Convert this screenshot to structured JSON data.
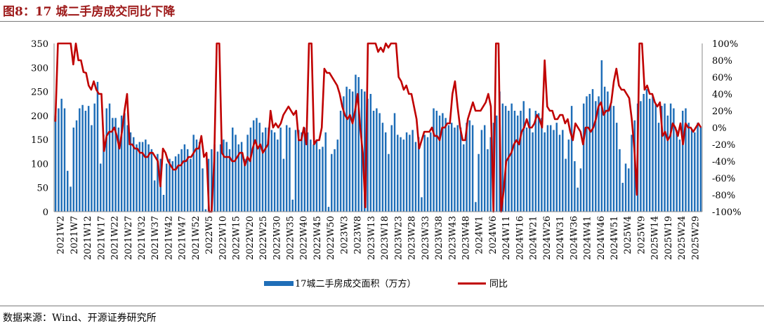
{
  "header": {
    "figure_title": "图8：17 城二手房成交同比下降"
  },
  "footer": {
    "source": "数据来源：Wind、开源证券研究所"
  },
  "chart_data": {
    "type": "bar",
    "title": "",
    "x_tick_labels": [
      "2021W2",
      "2021W7",
      "2021W12",
      "2021W17",
      "2021W22",
      "2021W27",
      "2021W32",
      "2021W37",
      "2021W42",
      "2021W47",
      "2021W52",
      "2022W5",
      "2022W10",
      "2022W15",
      "2022W20",
      "2022W25",
      "2022W30",
      "2022W35",
      "2022W40",
      "2022W45",
      "2022W50",
      "2023W3",
      "2023W8",
      "2023W13",
      "2023W18",
      "2023W23",
      "2023W28",
      "2023W33",
      "2023W38",
      "2023W43",
      "2023W48",
      "2024W1",
      "2024W6",
      "2024W11",
      "2024W16",
      "2024W21",
      "2024W26",
      "2024W31",
      "2024W36",
      "2024W41",
      "2024W46",
      "2024W51",
      "2025W4",
      "2025W9",
      "2025W14",
      "2025W19",
      "2025W24",
      "2025W29"
    ],
    "y_left": {
      "min": 0,
      "max": 350,
      "ticks": [
        0,
        50,
        100,
        150,
        200,
        250,
        300,
        350
      ],
      "tick_labels": [
        "0",
        "50",
        "100",
        "150",
        "200",
        "250",
        "300",
        "350"
      ]
    },
    "y_right": {
      "min": -100,
      "max": 100,
      "ticks": [
        -100,
        -80,
        -60,
        -40,
        -20,
        0,
        20,
        40,
        60,
        80,
        100
      ],
      "tick_labels": [
        "-100%",
        "-80%",
        "-60%",
        "-40%",
        "-20%",
        "0%",
        "20%",
        "40%",
        "60%",
        "80%",
        "100%"
      ]
    },
    "grid": false,
    "legend_position": "bottom",
    "series": [
      {
        "name": "17城二手房成交面积（万方）",
        "type": "bar",
        "axis": "left",
        "color": "#1f6eb8",
        "values": [
          200,
          215,
          235,
          215,
          85,
          52,
          175,
          190,
          215,
          222,
          210,
          220,
          180,
          225,
          270,
          100,
          160,
          215,
          225,
          195,
          195,
          175,
          200,
          205,
          180,
          165,
          155,
          140,
          145,
          145,
          150,
          140,
          130,
          65,
          120,
          110,
          35,
          100,
          110,
          105,
          115,
          120,
          130,
          140,
          130,
          110,
          160,
          150,
          145,
          90,
          5,
          110,
          130,
          140,
          125,
          140,
          150,
          145,
          130,
          175,
          160,
          140,
          145,
          110,
          160,
          175,
          190,
          195,
          185,
          165,
          175,
          175,
          170,
          165,
          150,
          175,
          110,
          180,
          175,
          25,
          170,
          170,
          165,
          175,
          165,
          150,
          140,
          150,
          130,
          135,
          165,
          10,
          120,
          130,
          150,
          210,
          240,
          260,
          255,
          250,
          285,
          280,
          255,
          250,
          235,
          245,
          210,
          215,
          205,
          185,
          165,
          120,
          180,
          205,
          160,
          155,
          150,
          165,
          160,
          170,
          145,
          155,
          30,
          160,
          155,
          165,
          215,
          210,
          200,
          205,
          195,
          180,
          185,
          175,
          180,
          175,
          140,
          185,
          190,
          180,
          20,
          120,
          170,
          180,
          130,
          155,
          185,
          200,
          250,
          225,
          220,
          210,
          225,
          210,
          200,
          210,
          230,
          175,
          215,
          165,
          210,
          205,
          195,
          165,
          180,
          180,
          170,
          185,
          160,
          170,
          110,
          150,
          220,
          105,
          50,
          90,
          225,
          240,
          245,
          255,
          230,
          240,
          315,
          260,
          250,
          225,
          220,
          185,
          130,
          60,
          100,
          90,
          160,
          190,
          225,
          230,
          245,
          255,
          235,
          240,
          225,
          185,
          220,
          225,
          200,
          225,
          215,
          170,
          150,
          210,
          215,
          185,
          170,
          165,
          185,
          175
        ],
        "value_note": ""
      },
      {
        "name": "同比",
        "type": "line",
        "axis": "right",
        "color": "#c00000",
        "values": [
          7,
          100,
          100,
          100,
          100,
          100,
          100,
          75,
          100,
          80,
          80,
          66,
          65,
          50,
          45,
          55,
          45,
          40,
          40,
          -28,
          -10,
          -5,
          -5,
          0,
          -10,
          -25,
          -5,
          20,
          40,
          -20,
          -20,
          -25,
          -25,
          -30,
          -30,
          -35,
          -35,
          -30,
          -30,
          -35,
          -40,
          -70,
          -25,
          -30,
          -40,
          -45,
          -50,
          -50,
          -45,
          -45,
          -40,
          -40,
          -35,
          -35,
          -30,
          -25,
          -25,
          -10,
          -35,
          -30,
          -100,
          -100,
          -40,
          100,
          100,
          -30,
          -35,
          -35,
          -35,
          -40,
          -40,
          -35,
          -30,
          -30,
          -45,
          -35,
          -40,
          -25,
          -15,
          -25,
          -20,
          -30,
          -25,
          -20,
          20,
          0,
          5,
          0,
          5,
          15,
          20,
          25,
          20,
          15,
          20,
          -15,
          -15,
          0,
          -20,
          100,
          100,
          -20,
          -15,
          -15,
          0,
          70,
          65,
          65,
          60,
          55,
          50,
          40,
          25,
          15,
          10,
          15,
          5,
          20,
          40,
          0,
          -30,
          -95,
          100,
          100,
          100,
          100,
          90,
          95,
          90,
          100,
          95,
          100,
          100,
          100,
          60,
          55,
          45,
          50,
          40,
          40,
          25,
          10,
          -25,
          -15,
          -5,
          -5,
          -5,
          0,
          -10,
          -10,
          -15,
          0,
          0,
          5,
          5,
          40,
          55,
          25,
          0,
          -15,
          -15,
          10,
          20,
          30,
          20,
          20,
          20,
          25,
          30,
          40,
          25,
          -100,
          100,
          100,
          -100,
          -75,
          -40,
          -35,
          -30,
          -20,
          -15,
          -20,
          -5,
          0,
          10,
          0,
          0,
          5,
          15,
          10,
          0,
          80,
          25,
          20,
          20,
          10,
          10,
          15,
          15,
          5,
          10,
          -5,
          -15,
          5,
          0,
          -5,
          -20,
          0,
          0,
          -5,
          0,
          10,
          25,
          30,
          15,
          20,
          20,
          30,
          55,
          70,
          50,
          45,
          45,
          40,
          35,
          10,
          -25,
          -80,
          100,
          100,
          45,
          50,
          40,
          40,
          30,
          25,
          30,
          -10,
          -5,
          -15,
          -10,
          5,
          0,
          -10,
          5,
          -20,
          5,
          0,
          0,
          -5,
          0,
          5,
          0
        ]
      }
    ]
  }
}
